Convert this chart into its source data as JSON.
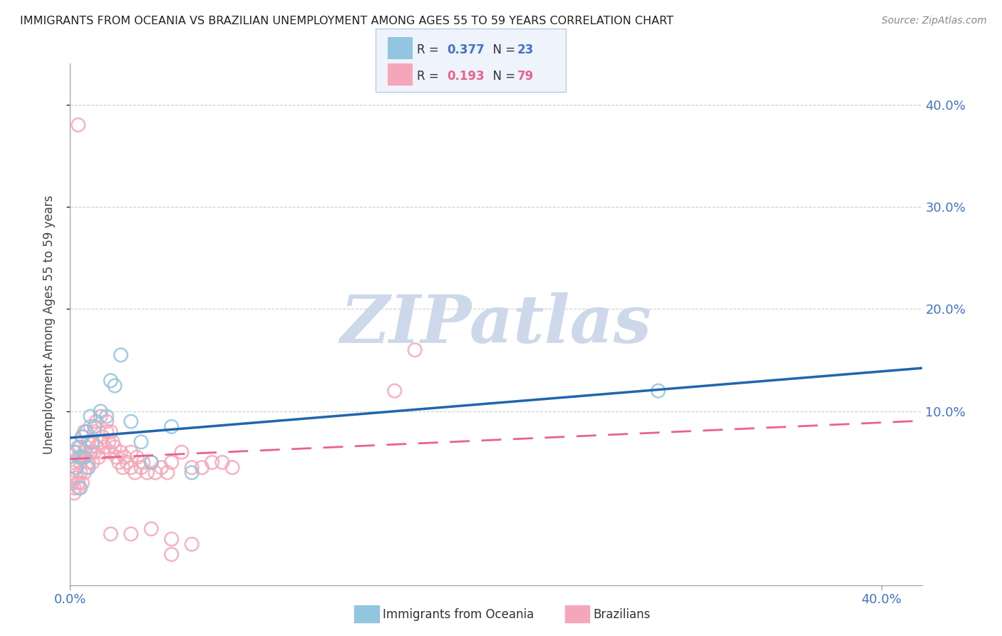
{
  "title": "IMMIGRANTS FROM OCEANIA VS BRAZILIAN UNEMPLOYMENT AMONG AGES 55 TO 59 YEARS CORRELATION CHART",
  "source": "Source: ZipAtlas.com",
  "ylabel": "Unemployment Among Ages 55 to 59 years",
  "xlim": [
    0.0,
    0.42
  ],
  "ylim": [
    -0.07,
    0.44
  ],
  "ytick_positions": [
    0.1,
    0.2,
    0.3,
    0.4
  ],
  "ytick_labels": [
    "10.0%",
    "20.0%",
    "30.0%",
    "40.0%"
  ],
  "xtick_positions": [
    0.0,
    0.4
  ],
  "xtick_labels": [
    "0.0%",
    "40.0%"
  ],
  "blue_R": 0.377,
  "blue_N": 23,
  "pink_R": 0.193,
  "pink_N": 79,
  "blue_color": "#92c5de",
  "pink_color": "#f4a7b9",
  "blue_line_color": "#2166ac",
  "pink_line_color": "#e8638c",
  "watermark": "ZIPatlas",
  "watermark_color": "#cdd8ea",
  "blue_x": [
    0.002,
    0.003,
    0.004,
    0.005,
    0.005,
    0.006,
    0.007,
    0.008,
    0.009,
    0.01,
    0.011,
    0.012,
    0.015,
    0.018,
    0.02,
    0.022,
    0.025,
    0.03,
    0.035,
    0.04,
    0.05,
    0.06,
    0.29
  ],
  "blue_y": [
    0.06,
    0.045,
    0.065,
    0.055,
    0.025,
    0.075,
    0.055,
    0.08,
    0.045,
    0.095,
    0.07,
    0.085,
    0.1,
    0.095,
    0.13,
    0.125,
    0.155,
    0.09,
    0.07,
    0.05,
    0.085,
    0.04,
    0.12
  ],
  "pink_x": [
    0.001,
    0.001,
    0.002,
    0.002,
    0.002,
    0.003,
    0.003,
    0.003,
    0.004,
    0.004,
    0.004,
    0.005,
    0.005,
    0.005,
    0.006,
    0.006,
    0.006,
    0.007,
    0.007,
    0.007,
    0.008,
    0.008,
    0.008,
    0.009,
    0.009,
    0.01,
    0.01,
    0.011,
    0.011,
    0.012,
    0.012,
    0.013,
    0.013,
    0.014,
    0.015,
    0.015,
    0.016,
    0.016,
    0.017,
    0.018,
    0.018,
    0.019,
    0.02,
    0.02,
    0.021,
    0.022,
    0.023,
    0.024,
    0.025,
    0.026,
    0.027,
    0.028,
    0.03,
    0.03,
    0.032,
    0.033,
    0.035,
    0.036,
    0.038,
    0.04,
    0.042,
    0.045,
    0.048,
    0.05,
    0.055,
    0.06,
    0.065,
    0.07,
    0.075,
    0.08,
    0.02,
    0.03,
    0.04,
    0.05,
    0.06,
    0.05,
    0.16,
    0.17,
    0.004
  ],
  "pink_y": [
    0.03,
    0.04,
    0.02,
    0.025,
    0.05,
    0.035,
    0.045,
    0.06,
    0.03,
    0.025,
    0.055,
    0.04,
    0.05,
    0.065,
    0.03,
    0.055,
    0.075,
    0.04,
    0.06,
    0.08,
    0.045,
    0.065,
    0.08,
    0.05,
    0.07,
    0.06,
    0.085,
    0.05,
    0.07,
    0.06,
    0.08,
    0.065,
    0.09,
    0.055,
    0.07,
    0.095,
    0.06,
    0.075,
    0.065,
    0.08,
    0.09,
    0.07,
    0.06,
    0.08,
    0.07,
    0.065,
    0.055,
    0.05,
    0.06,
    0.045,
    0.055,
    0.05,
    0.045,
    0.06,
    0.04,
    0.055,
    0.045,
    0.05,
    0.04,
    0.05,
    0.04,
    0.045,
    0.04,
    0.05,
    0.06,
    0.045,
    0.045,
    0.05,
    0.05,
    0.045,
    -0.02,
    -0.02,
    -0.015,
    -0.025,
    -0.03,
    -0.04,
    0.12,
    0.16,
    0.38
  ],
  "legend_box_color": "#eef3fc",
  "legend_border_color": "#b8cce4"
}
